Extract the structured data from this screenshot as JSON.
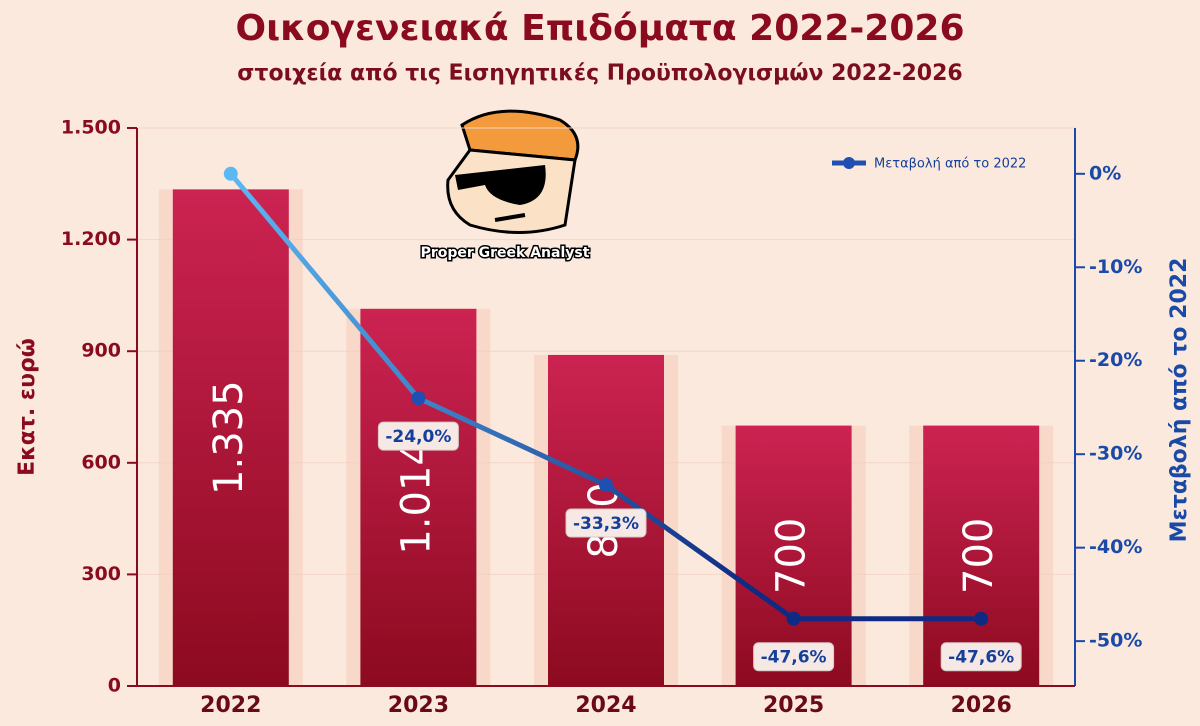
{
  "chart_data": {
    "type": "bar-line",
    "title": "Οικογενειακά Επιδόματα 2022-2026",
    "subtitle": "στοιχεία από τις Εισηγητικές Προϋπολογισμών 2022-2026",
    "y_label": "Εκατ. ευρώ",
    "y2_label": "Μεταβολή από το 2022",
    "watermark": "Proper Greek Analyst",
    "categories": [
      "2022",
      "2023",
      "2024",
      "2025",
      "2026"
    ],
    "bars": {
      "values": [
        1335,
        1014,
        890,
        700,
        700
      ],
      "value_labels": [
        "1.335",
        "1.014",
        "890",
        "700",
        "700"
      ],
      "color_top": "#cc2352",
      "color_bottom": "#8c0a1f"
    },
    "series": [
      {
        "name": "Μεταβολή από το 2022",
        "values": [
          0,
          -24.0,
          -33.3,
          -47.6,
          -47.6
        ],
        "value_labels": [
          null,
          "-24,0%",
          "-33,3%",
          "-47,6%",
          "-47,6%"
        ],
        "axis": "y2",
        "color": "#1f4fb0",
        "color_start": "#5cb8f2",
        "color_end": "#0e2a82"
      }
    ],
    "ylim": [
      0,
      1500
    ],
    "yticks": [
      0,
      300,
      600,
      900,
      {
        "value": 1200,
        "label": "1.200"
      },
      {
        "value": 1500,
        "label": "1.500"
      }
    ],
    "y2lim": [
      -54.8,
      4.9
    ],
    "y2ticks": [
      {
        "value": 0,
        "label": "0%"
      },
      {
        "value": -10,
        "label": "-10%"
      },
      {
        "value": -20,
        "label": "-20%"
      },
      {
        "value": -30,
        "label": "-30%"
      },
      {
        "value": -40,
        "label": "-40%"
      },
      {
        "value": -50,
        "label": "-50%"
      }
    ],
    "grid": true,
    "legend": "top-right"
  }
}
